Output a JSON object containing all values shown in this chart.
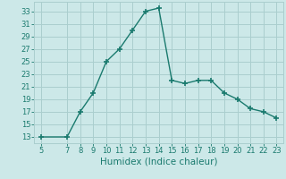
{
  "x": [
    5,
    7,
    8,
    9,
    10,
    11,
    12,
    13,
    14,
    15,
    16,
    17,
    18,
    19,
    20,
    21,
    22,
    23
  ],
  "y": [
    13,
    13,
    17,
    20,
    25,
    27,
    30,
    33,
    33.5,
    22,
    21.5,
    22,
    22,
    20,
    19,
    17.5,
    17,
    16
  ],
  "line_color": "#1a7a6e",
  "marker": "+",
  "marker_size": 4,
  "bg_color": "#cce8e8",
  "grid_color": "#aacece",
  "xlabel": "Humidex (Indice chaleur)",
  "xlim": [
    4.5,
    23.5
  ],
  "ylim": [
    12,
    34.5
  ],
  "xticks": [
    5,
    7,
    8,
    9,
    10,
    11,
    12,
    13,
    14,
    15,
    16,
    17,
    18,
    19,
    20,
    21,
    22,
    23
  ],
  "yticks": [
    13,
    15,
    17,
    19,
    21,
    23,
    25,
    27,
    29,
    31,
    33
  ],
  "tick_fontsize": 6,
  "label_fontsize": 7.5
}
